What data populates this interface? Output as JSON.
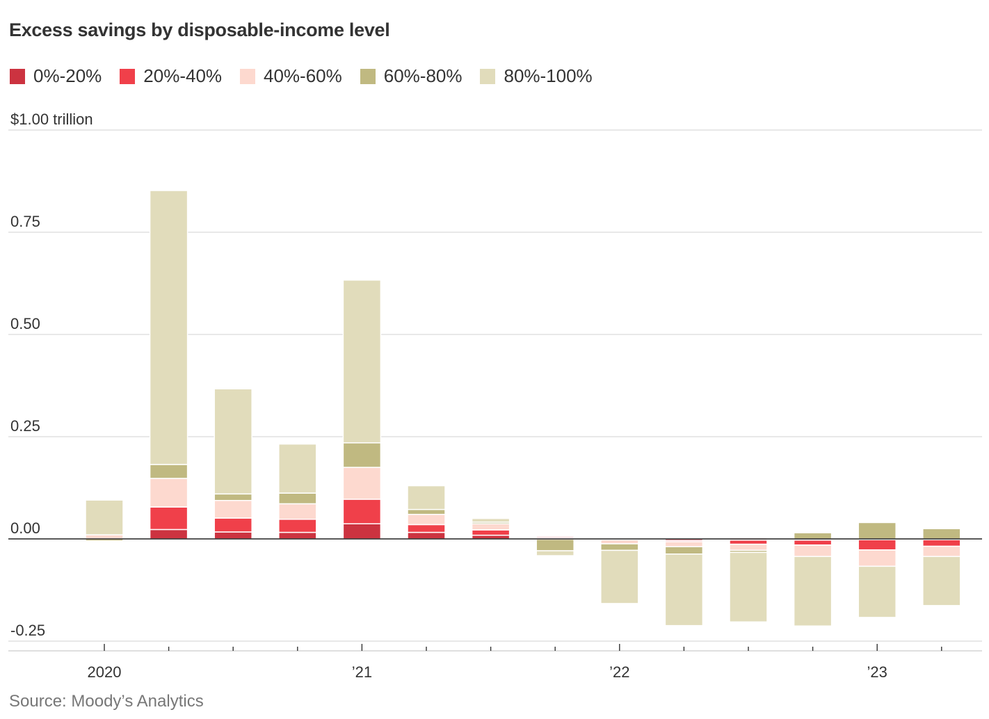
{
  "chart_data": {
    "type": "bar",
    "stacked": true,
    "title": "Excess savings by disposable-income level",
    "yunit_label": "$1.00 trillion",
    "ylim": [
      -0.25,
      1.0
    ],
    "yticks": [
      {
        "value": 1.0,
        "label": "$1.00 trillion"
      },
      {
        "value": 0.75,
        "label": "0.75"
      },
      {
        "value": 0.5,
        "label": "0.50"
      },
      {
        "value": 0.25,
        "label": "0.25"
      },
      {
        "value": 0.0,
        "label": "0.00"
      },
      {
        "value": -0.25,
        "label": "-0.25"
      }
    ],
    "categories": [
      "2020 Q1",
      "2020 Q2",
      "2020 Q3",
      "2020 Q4",
      "2021 Q1",
      "2021 Q2",
      "2021 Q3",
      "2021 Q4",
      "2022 Q1",
      "2022 Q2",
      "2022 Q3",
      "2022 Q4",
      "2023 Q1",
      "2023 Q2"
    ],
    "xtick_labels": [
      {
        "index": 0,
        "label": "2020"
      },
      {
        "index": 4,
        "label": "’21"
      },
      {
        "index": 8,
        "label": "’22"
      },
      {
        "index": 12,
        "label": "’23"
      }
    ],
    "series": [
      {
        "name": "0%-20%",
        "color": "#cc3340",
        "values": [
          0.0,
          0.023,
          0.017,
          0.016,
          0.037,
          0.016,
          0.009,
          0.003,
          0.0,
          -0.004,
          -0.003,
          -0.003,
          -0.002,
          -0.002
        ]
      },
      {
        "name": "20%-40%",
        "color": "#f0404a",
        "values": [
          0.0,
          0.055,
          0.034,
          0.032,
          0.06,
          0.019,
          0.013,
          0.003,
          -0.002,
          -0.003,
          -0.01,
          -0.012,
          -0.025,
          -0.016
        ]
      },
      {
        "name": "40%-60%",
        "color": "#fdd9cf",
        "values": [
          0.01,
          0.07,
          0.043,
          0.038,
          0.078,
          0.025,
          0.015,
          -0.001,
          -0.01,
          -0.012,
          -0.015,
          -0.028,
          -0.04,
          -0.025
        ]
      },
      {
        "name": "60%-80%",
        "color": "#c0b981",
        "values": [
          -0.005,
          0.034,
          0.016,
          0.026,
          0.06,
          0.012,
          0.004,
          -0.028,
          -0.016,
          -0.018,
          -0.005,
          0.015,
          0.04,
          0.025
        ]
      },
      {
        "name": "80%-100%",
        "color": "#e1dcbb",
        "values": [
          0.085,
          0.67,
          0.257,
          0.12,
          0.398,
          0.058,
          0.009,
          -0.012,
          -0.13,
          -0.175,
          -0.17,
          -0.17,
          -0.125,
          -0.12
        ]
      }
    ]
  },
  "source": "Source: Moody’s Analytics"
}
